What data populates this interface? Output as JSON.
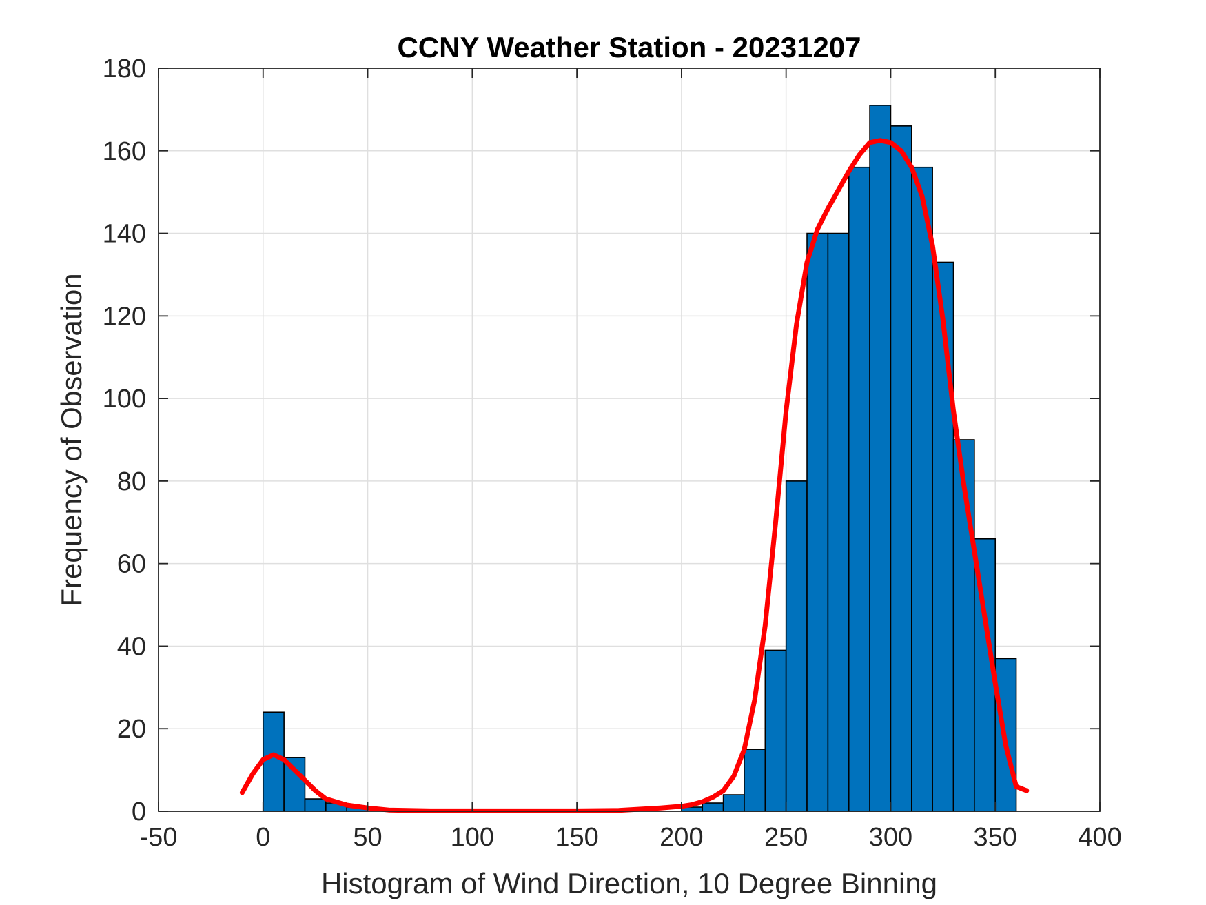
{
  "chart_data": {
    "type": "bar",
    "title": "CCNY Weather Station - 20231207",
    "xlabel": "Histogram of Wind Direction, 10 Degree Binning",
    "ylabel": "Frequency of Observation",
    "xlim": [
      -50,
      400
    ],
    "ylim": [
      0,
      180
    ],
    "xticks": [
      -50,
      0,
      50,
      100,
      150,
      200,
      250,
      300,
      350,
      400
    ],
    "yticks": [
      0,
      20,
      40,
      60,
      80,
      100,
      120,
      140,
      160,
      180
    ],
    "grid": true,
    "bin_width": 10,
    "bins": [
      {
        "start": 0,
        "count": 24
      },
      {
        "start": 10,
        "count": 13
      },
      {
        "start": 20,
        "count": 3
      },
      {
        "start": 30,
        "count": 2
      },
      {
        "start": 40,
        "count": 1
      },
      {
        "start": 50,
        "count": 0
      },
      {
        "start": 60,
        "count": 0
      },
      {
        "start": 70,
        "count": 0
      },
      {
        "start": 80,
        "count": 0
      },
      {
        "start": 90,
        "count": 0
      },
      {
        "start": 100,
        "count": 0
      },
      {
        "start": 110,
        "count": 0
      },
      {
        "start": 120,
        "count": 0
      },
      {
        "start": 130,
        "count": 0
      },
      {
        "start": 140,
        "count": 0
      },
      {
        "start": 150,
        "count": 0
      },
      {
        "start": 160,
        "count": 0
      },
      {
        "start": 170,
        "count": 0
      },
      {
        "start": 180,
        "count": 0
      },
      {
        "start": 190,
        "count": 0
      },
      {
        "start": 200,
        "count": 1
      },
      {
        "start": 210,
        "count": 2
      },
      {
        "start": 220,
        "count": 4
      },
      {
        "start": 230,
        "count": 15
      },
      {
        "start": 240,
        "count": 39
      },
      {
        "start": 250,
        "count": 80
      },
      {
        "start": 260,
        "count": 140
      },
      {
        "start": 270,
        "count": 140
      },
      {
        "start": 280,
        "count": 156
      },
      {
        "start": 290,
        "count": 171
      },
      {
        "start": 300,
        "count": 166
      },
      {
        "start": 310,
        "count": 156
      },
      {
        "start": 320,
        "count": 133
      },
      {
        "start": 330,
        "count": 90
      },
      {
        "start": 340,
        "count": 66
      },
      {
        "start": 350,
        "count": 37
      }
    ],
    "fit_curve": {
      "x": [
        -10,
        -5,
        0,
        5,
        10,
        15,
        20,
        25,
        30,
        40,
        50,
        60,
        80,
        100,
        120,
        150,
        170,
        180,
        190,
        200,
        205,
        210,
        215,
        220,
        225,
        230,
        235,
        240,
        245,
        250,
        255,
        260,
        265,
        270,
        280,
        285,
        290,
        295,
        300,
        305,
        310,
        315,
        320,
        325,
        330,
        335,
        340,
        345,
        350,
        355,
        360,
        365
      ],
      "y": [
        4.5,
        9,
        12.5,
        13.7,
        12.5,
        10,
        7.5,
        5,
        3,
        1.5,
        0.8,
        0.3,
        0.1,
        0.1,
        0.1,
        0.1,
        0.2,
        0.5,
        0.8,
        1.2,
        1.6,
        2.3,
        3.4,
        5,
        8.5,
        15,
        27,
        45,
        70,
        97,
        118,
        133,
        141,
        146,
        155,
        159,
        162,
        162.5,
        162,
        160,
        156,
        149,
        137,
        119,
        97,
        79,
        63,
        47,
        31,
        16,
        6,
        5
      ]
    },
    "colors": {
      "bar_fill": "#0072BD",
      "bar_edge": "#000000",
      "fit_line": "#FF0000",
      "grid": "#DFDFDF",
      "axis": "#262626"
    }
  }
}
